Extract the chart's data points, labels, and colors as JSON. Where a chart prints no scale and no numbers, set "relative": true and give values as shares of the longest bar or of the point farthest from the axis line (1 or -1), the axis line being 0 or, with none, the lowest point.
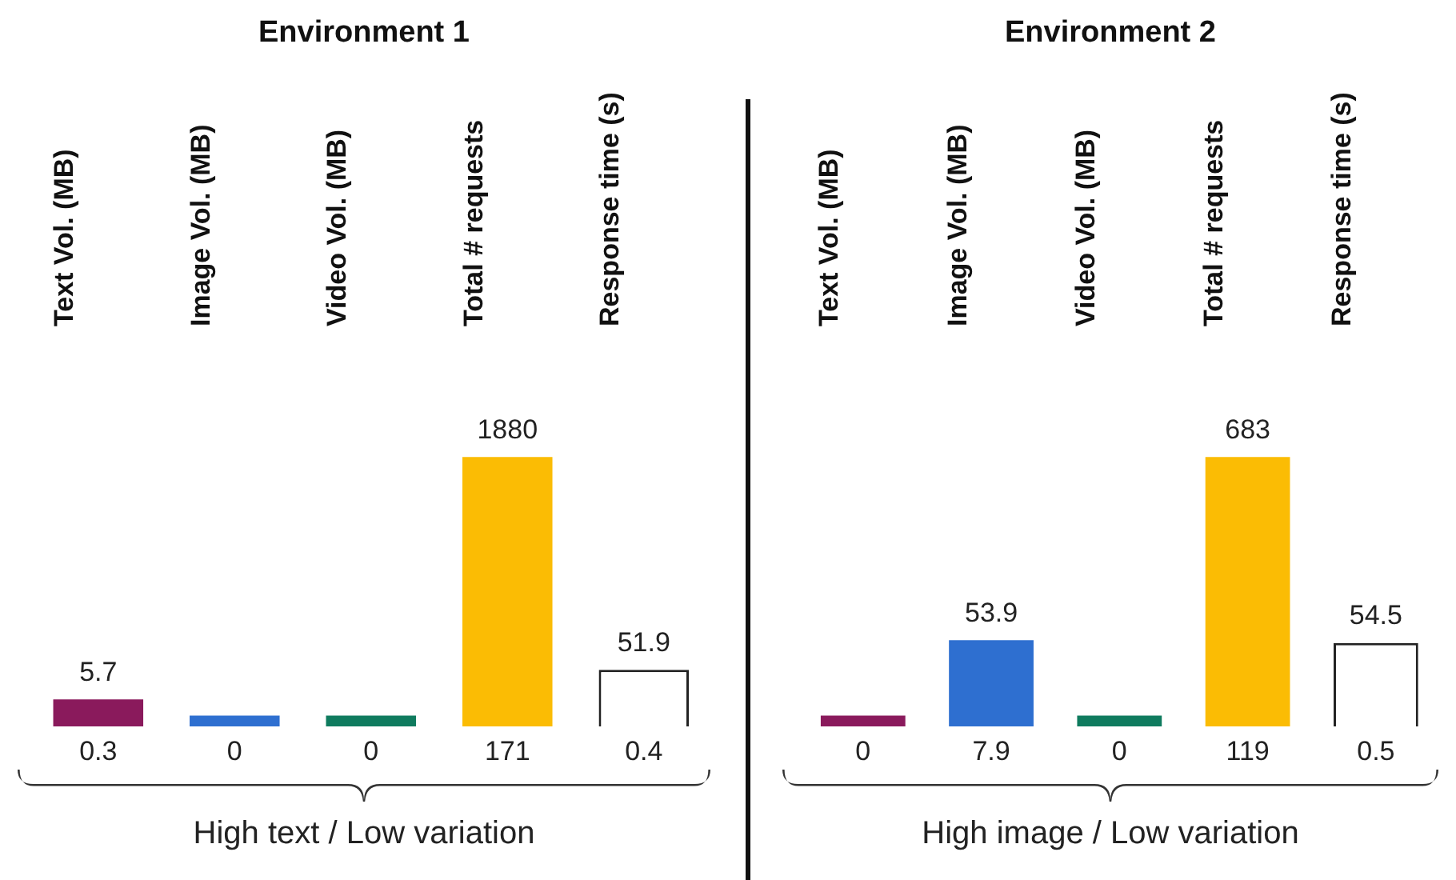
{
  "chart_data": [
    {
      "type": "bar",
      "title": "Environment 1",
      "xlabel": "High text / Low variation",
      "relative": true,
      "legend": false,
      "grid": false,
      "categories": [
        "Text Vol. (MB)",
        "Image Vol. (MB)",
        "Video Vol. (MB)",
        "Total # requests",
        "Response time (s)"
      ],
      "values": [
        0.1,
        0.04,
        0.04,
        1,
        0.21
      ],
      "colors": [
        "#8a1a5c",
        "#2e6fd0",
        "#0f7b5e",
        "#fbbc04",
        "#ffffff"
      ],
      "annotations": [
        {
          "text": "5.7",
          "x": "Text Vol. (MB)",
          "y": 0.1
        },
        {
          "text": "1880",
          "x": "Total # requests",
          "y": 1
        },
        {
          "text": "51.9",
          "x": "Response time (s)",
          "y": 0.21
        },
        {
          "text": "0.3",
          "x": "Text Vol. (MB)",
          "y": 0
        },
        {
          "text": "0",
          "x": "Image Vol. (MB)",
          "y": 0
        },
        {
          "text": "0",
          "x": "Video Vol. (MB)",
          "y": 0
        },
        {
          "text": "171",
          "x": "Total # requests",
          "y": 0
        },
        {
          "text": "0.4",
          "x": "Response time (s)",
          "y": 0
        }
      ]
    },
    {
      "type": "bar",
      "title": "Environment 2",
      "xlabel": "High image / Low variation",
      "relative": true,
      "legend": false,
      "grid": false,
      "categories": [
        "Text Vol. (MB)",
        "Image Vol. (MB)",
        "Video Vol. (MB)",
        "Total # requests",
        "Response time (s)"
      ],
      "values": [
        0.04,
        0.32,
        0.04,
        1,
        0.31
      ],
      "colors": [
        "#8a1a5c",
        "#2e6fd0",
        "#0f7b5e",
        "#fbbc04",
        "#ffffff"
      ],
      "annotations": [
        {
          "text": "53.9",
          "x": "Image Vol. (MB)",
          "y": 0.32
        },
        {
          "text": "683",
          "x": "Total # requests",
          "y": 1
        },
        {
          "text": "54.5",
          "x": "Response time (s)",
          "y": 0.31
        },
        {
          "text": "0",
          "x": "Text Vol. (MB)",
          "y": 0
        },
        {
          "text": "7.9",
          "x": "Image Vol. (MB)",
          "y": 0
        },
        {
          "text": "0",
          "x": "Video Vol. (MB)",
          "y": 0
        },
        {
          "text": "119",
          "x": "Total # requests",
          "y": 0
        },
        {
          "text": "0.5",
          "x": "Response time (s)",
          "y": 0
        }
      ]
    }
  ]
}
